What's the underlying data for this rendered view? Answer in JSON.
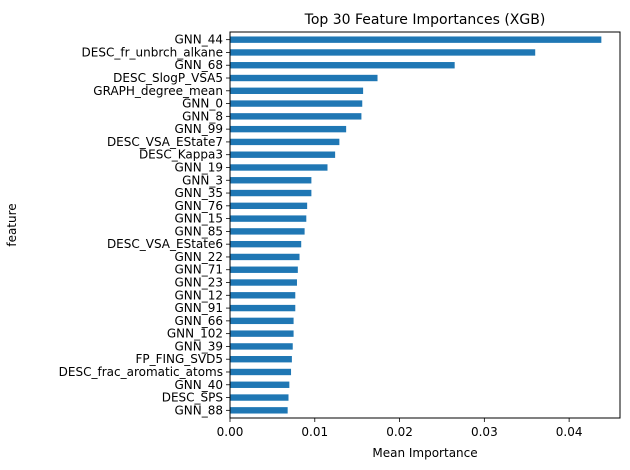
{
  "chart_data": {
    "type": "bar",
    "orientation": "horizontal",
    "title": "Top 30 Feature Importances (XGB)",
    "xlabel": "Mean Importance",
    "ylabel": "feature",
    "xlim": [
      0,
      0.046
    ],
    "xticks": [
      0.0,
      0.01,
      0.02,
      0.03,
      0.04
    ],
    "xtick_labels": [
      "0.00",
      "0.01",
      "0.02",
      "0.03",
      "0.04"
    ],
    "bar_color": "#1f77b4",
    "grid": false,
    "legend": "none",
    "categories": [
      "GNN_44",
      "DESC_fr_unbrch_alkane",
      "GNN_68",
      "DESC_SlogP_VSA5",
      "GRAPH_degree_mean",
      "GNN_0",
      "GNN_8",
      "GNN_99",
      "DESC_VSA_EState7",
      "DESC_Kappa3",
      "GNN_19",
      "GNN_3",
      "GNN_35",
      "GNN_76",
      "GNN_15",
      "GNN_85",
      "DESC_VSA_EState6",
      "GNN_22",
      "GNN_71",
      "GNN_23",
      "GNN_12",
      "GNN_91",
      "GNN_66",
      "GNN_102",
      "GNN_39",
      "FP_FING_SVD5",
      "DESC_frac_aromatic_atoms",
      "GNN_40",
      "DESC_SPS",
      "GNN_88"
    ],
    "values": [
      0.0438,
      0.036,
      0.0265,
      0.0174,
      0.0157,
      0.0156,
      0.0155,
      0.0137,
      0.0129,
      0.0124,
      0.0115,
      0.0096,
      0.0096,
      0.0091,
      0.009,
      0.0088,
      0.0084,
      0.0082,
      0.008,
      0.0079,
      0.0077,
      0.0077,
      0.0075,
      0.0075,
      0.0074,
      0.0073,
      0.0072,
      0.007,
      0.0069,
      0.0068
    ]
  }
}
